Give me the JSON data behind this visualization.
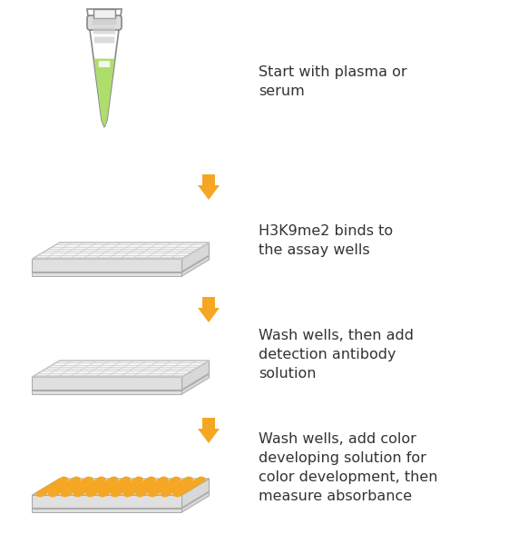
{
  "background_color": "#ffffff",
  "arrow_color": "#F5A623",
  "text_color": "#333333",
  "steps": [
    "Start with plasma or\nserum",
    "H3K9me2 binds to\nthe assay wells",
    "Wash wells, then add\ndetection antibody\nsolution",
    "Wash wells, add color\ndeveloping solution for\ncolor development, then\nmeasure absorbance"
  ],
  "tube_body_color": "#ffffff",
  "tube_cap_color": "#dddddd",
  "tube_liquid_color": "#aedd6e",
  "tube_stripe_color": "#cccccc",
  "plate_top_color": "#f5f5f5",
  "plate_top_grid_color": "#cccccc",
  "plate_side_color": "#d8d8d8",
  "plate_front_color": "#e0e0e0",
  "plate_orange_color": "#F5A623",
  "figsize": [
    5.82,
    6.1
  ],
  "dpi": 100
}
